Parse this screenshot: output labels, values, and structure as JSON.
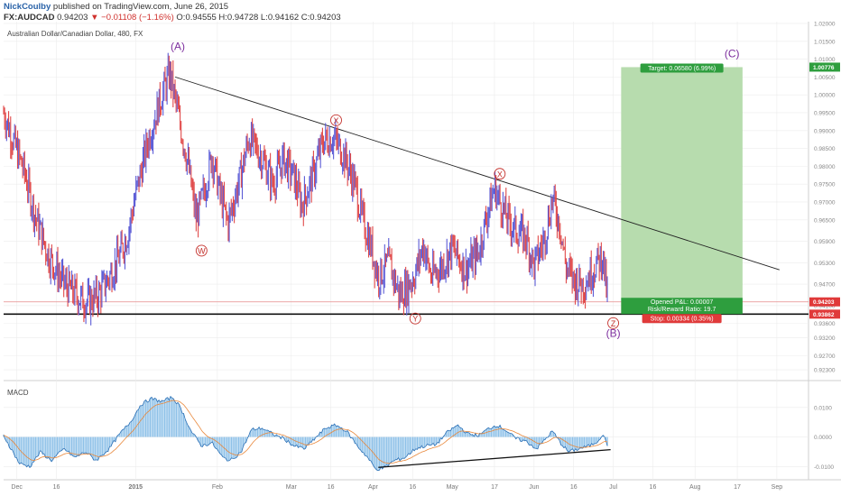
{
  "header": {
    "user": "NickCoulby",
    "published": "published on TradingView.com, June 26, 2015",
    "symbol": "FX:AUDCAD",
    "last": "0.94203",
    "arrow": "▼",
    "change": "−0.01108 (−1.16%)",
    "ohlc": "O:0.94555 H:0.94728 L:0.94162 C:0.94203"
  },
  "colors": {
    "up_bar": "#5b5bd6",
    "down_bar": "#e04848",
    "macd_hist": "#8ec1e8",
    "macd_line": "#2a6fb5",
    "signal_line": "#e8873a",
    "target_zone": "#b7dcae",
    "stop_zone": "#f3cccc",
    "wave_purple": "#7d2f9e",
    "wave_red": "#c4302b",
    "grid": "#ececec"
  },
  "chart_data": [
    {
      "type": "candlestick",
      "title": "Australian Dollar/Canadian Dollar, 480, FX",
      "ylim": [
        0.9205,
        1.0205
      ],
      "y_ticks": [
        "1.02000",
        "1.01500",
        "1.01000",
        "1.00500",
        "1.00000",
        "0.99500",
        "0.99000",
        "0.98500",
        "0.98000",
        "0.97500",
        "0.97000",
        "0.96500",
        "0.95900",
        "0.95300",
        "0.94700",
        "0.94100",
        "0.93600",
        "0.93200",
        "0.92700",
        "0.92300"
      ],
      "x_ticks": [
        {
          "label": "Dec",
          "day": -45
        },
        {
          "label": "16",
          "day": -30
        },
        {
          "label": "2015",
          "day": 0
        },
        {
          "label": "Feb",
          "day": 31
        },
        {
          "label": "Mar",
          "day": 59
        },
        {
          "label": "16",
          "day": 74
        },
        {
          "label": "Apr",
          "day": 90
        },
        {
          "label": "16",
          "day": 105
        },
        {
          "label": "May",
          "day": 120
        },
        {
          "label": "17",
          "day": 136
        },
        {
          "label": "Jun",
          "day": 151
        },
        {
          "label": "16",
          "day": 166
        },
        {
          "label": "Jul",
          "day": 181
        },
        {
          "label": "16",
          "day": 196
        },
        {
          "label": "Aug",
          "day": 212
        },
        {
          "label": "17",
          "day": 228
        },
        {
          "label": "Sep",
          "day": 243
        }
      ],
      "price_path": [
        [
          -50,
          0.995
        ],
        [
          -42,
          0.978
        ],
        [
          -38,
          0.966
        ],
        [
          -33,
          0.955
        ],
        [
          -27,
          0.947
        ],
        [
          -21,
          0.943
        ],
        [
          -18,
          0.942
        ],
        [
          -14,
          0.944
        ],
        [
          -10,
          0.949
        ],
        [
          -6,
          0.955
        ],
        [
          -3,
          0.961
        ],
        [
          0,
          0.972
        ],
        [
          5,
          0.988
        ],
        [
          10,
          1.0
        ],
        [
          13,
          1.006
        ],
        [
          16,
          0.995
        ],
        [
          20,
          0.98
        ],
        [
          23,
          0.965
        ],
        [
          26,
          0.973
        ],
        [
          29,
          0.983
        ],
        [
          32,
          0.972
        ],
        [
          35,
          0.964
        ],
        [
          40,
          0.978
        ],
        [
          43,
          0.988
        ],
        [
          48,
          0.982
        ],
        [
          52,
          0.975
        ],
        [
          56,
          0.982
        ],
        [
          60,
          0.977
        ],
        [
          63,
          0.969
        ],
        [
          67,
          0.977
        ],
        [
          71,
          0.987
        ],
        [
          75,
          0.988
        ],
        [
          79,
          0.983
        ],
        [
          83,
          0.975
        ],
        [
          86,
          0.965
        ],
        [
          89,
          0.958
        ],
        [
          92,
          0.949
        ],
        [
          96,
          0.953
        ],
        [
          100,
          0.944
        ],
        [
          103,
          0.946
        ],
        [
          106,
          0.95
        ],
        [
          109,
          0.958
        ],
        [
          112,
          0.949
        ],
        [
          116,
          0.952
        ],
        [
          120,
          0.957
        ],
        [
          125,
          0.951
        ],
        [
          130,
          0.956
        ],
        [
          133,
          0.966
        ],
        [
          136,
          0.974
        ],
        [
          138,
          0.97
        ],
        [
          141,
          0.965
        ],
        [
          144,
          0.962
        ],
        [
          148,
          0.96
        ],
        [
          151,
          0.952
        ],
        [
          155,
          0.96
        ],
        [
          158,
          0.971
        ],
        [
          161,
          0.963
        ],
        [
          163,
          0.952
        ],
        [
          166,
          0.948
        ],
        [
          170,
          0.947
        ],
        [
          174,
          0.952
        ],
        [
          177,
          0.955
        ],
        [
          178,
          0.948
        ],
        [
          179,
          0.942
        ]
      ],
      "annotations": {
        "trendline_upper": [
          [
            15,
            1.005
          ],
          [
            244,
            0.951
          ]
        ],
        "support_line_price": 0.9386,
        "current_price_line": 0.94203,
        "price_tags": {
          "target_tag": "1.00776",
          "last_tag": "0.94203",
          "stop_tag": "0.93862"
        },
        "trade": {
          "entry": 0.94203,
          "target": 1.00776,
          "stop": 0.93862,
          "target_label": "Target: 0.06580 (6.99%)",
          "pnl_label": "Opened P&L: 0.00007",
          "rr_label": "Risk/Reward Ratio: 19.7",
          "stop_label": "Stop: 0.00334 (0.35%)"
        },
        "waves": [
          {
            "label": "(A)",
            "day": 16,
            "price": 1.0125,
            "color": "purple"
          },
          {
            "label": "W",
            "day": 25,
            "price": 0.9555,
            "color": "red",
            "circle": true
          },
          {
            "label": "X",
            "day": 76,
            "price": 0.992,
            "color": "red",
            "circle": true
          },
          {
            "label": "Y",
            "day": 106,
            "price": 0.9365,
            "color": "red",
            "circle": true
          },
          {
            "label": "X",
            "day": 138,
            "price": 0.977,
            "color": "red",
            "circle": true
          },
          {
            "label": "Z",
            "day": 181,
            "price": 0.9352,
            "color": "red",
            "circle": true
          },
          {
            "label": "(B)",
            "day": 181,
            "price": 0.9323,
            "color": "purple"
          },
          {
            "label": "(C)",
            "day": 226,
            "price": 1.0105,
            "color": "purple"
          }
        ]
      }
    },
    {
      "type": "bar",
      "title": "MACD",
      "ylim": [
        -0.0145,
        0.0185
      ],
      "y_ticks": [
        "0.0100",
        "0.0000",
        "-0.0100"
      ],
      "macd_path": [
        [
          -50,
          0.0005
        ],
        [
          -44,
          -0.009
        ],
        [
          -40,
          -0.01
        ],
        [
          -36,
          -0.005
        ],
        [
          -32,
          -0.008
        ],
        [
          -27,
          -0.004
        ],
        [
          -23,
          -0.007
        ],
        [
          -19,
          -0.005
        ],
        [
          -15,
          -0.008
        ],
        [
          -10,
          -0.004
        ],
        [
          -6,
          0.001
        ],
        [
          -2,
          0.005
        ],
        [
          2,
          0.011
        ],
        [
          6,
          0.013
        ],
        [
          10,
          0.012
        ],
        [
          14,
          0.0135
        ],
        [
          17,
          0.01
        ],
        [
          21,
          0.002
        ],
        [
          25,
          -0.003
        ],
        [
          29,
          -0.002
        ],
        [
          33,
          -0.007
        ],
        [
          36,
          -0.008
        ],
        [
          40,
          -0.005
        ],
        [
          44,
          0.0025
        ],
        [
          48,
          0.003
        ],
        [
          52,
          0.001
        ],
        [
          56,
          -0.0005
        ],
        [
          60,
          -0.003
        ],
        [
          64,
          -0.004
        ],
        [
          68,
          -0.0005
        ],
        [
          72,
          0.003
        ],
        [
          76,
          0.004
        ],
        [
          80,
          0.002
        ],
        [
          84,
          -0.003
        ],
        [
          88,
          -0.007
        ],
        [
          91,
          -0.011
        ],
        [
          94,
          -0.0105
        ],
        [
          98,
          -0.008
        ],
        [
          102,
          -0.007
        ],
        [
          106,
          -0.004
        ],
        [
          110,
          -0.003
        ],
        [
          114,
          -0.0025
        ],
        [
          118,
          0.0015
        ],
        [
          122,
          0.004
        ],
        [
          126,
          0.001
        ],
        [
          130,
          0.0005
        ],
        [
          134,
          0.003
        ],
        [
          137,
          0.004
        ],
        [
          140,
          0.0025
        ],
        [
          144,
          -0.0005
        ],
        [
          148,
          -0.0015
        ],
        [
          152,
          -0.004
        ],
        [
          155,
          -0.001
        ],
        [
          158,
          0.002
        ],
        [
          161,
          -0.002
        ],
        [
          164,
          -0.005
        ],
        [
          168,
          -0.004
        ],
        [
          172,
          -0.003
        ],
        [
          175,
          -0.0015
        ],
        [
          177,
          0.001
        ],
        [
          179,
          -0.003
        ]
      ],
      "trendline_lower": [
        [
          92,
          -0.0103
        ],
        [
          180,
          -0.0043
        ]
      ]
    }
  ]
}
